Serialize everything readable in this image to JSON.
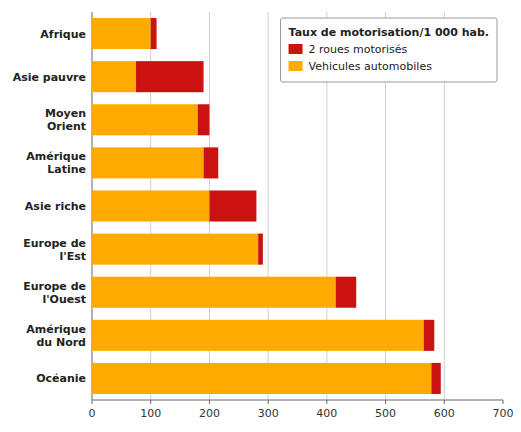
{
  "chart_data": {
    "type": "bar",
    "orientation": "horizontal",
    "stacked": true,
    "title": "Taux de motorisation/1 000 hab.",
    "categories": [
      "Afrique",
      "Asie pauvre",
      "Moyen\nOrient",
      "Amérique\nLatine",
      "Asie riche",
      "Europe de\nl'Est",
      "Europe de\nl'Ouest",
      "Amérique\ndu Nord",
      "Océanie"
    ],
    "series": [
      {
        "name": "Vehicules automobiles",
        "color": "#FFAA00",
        "values": [
          100,
          75,
          180,
          190,
          200,
          283,
          415,
          565,
          578
        ]
      },
      {
        "name": "2 roues motorisés",
        "color": "#CC1111",
        "values": [
          10,
          115,
          20,
          25,
          80,
          8,
          35,
          18,
          16
        ]
      }
    ],
    "xlim": [
      0,
      700
    ],
    "xticks": [
      0,
      100,
      200,
      300,
      400,
      500,
      600,
      700
    ],
    "grid": true,
    "legend": "upper right"
  }
}
